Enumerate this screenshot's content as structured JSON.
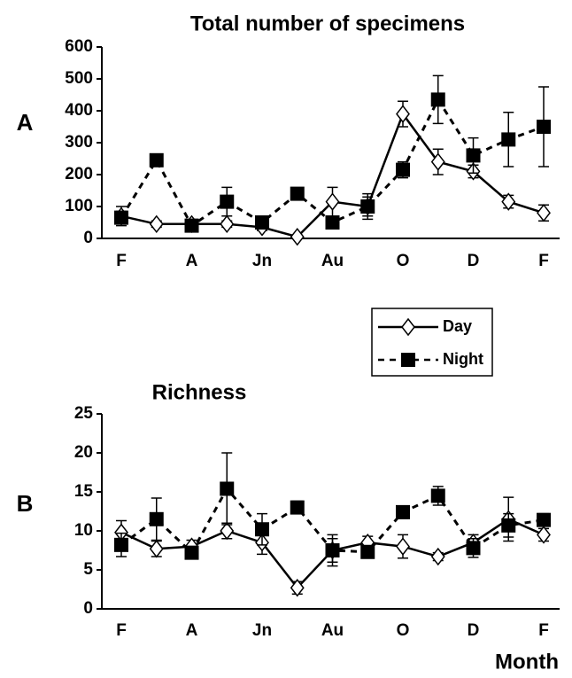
{
  "chart_data": [
    {
      "type": "line",
      "label": "A",
      "title": "Total number of specimens",
      "categories": [
        "F",
        null,
        "A",
        null,
        "Jn",
        null,
        "Au",
        null,
        "O",
        null,
        "D",
        null,
        "F"
      ],
      "ylim": [
        0,
        600
      ],
      "yticks": [
        0,
        100,
        200,
        300,
        400,
        500,
        600
      ],
      "series": [
        {
          "color": "#000000",
          "marker": "diamond",
          "dashed": false,
          "values": [
            70,
            45,
            45,
            45,
            35,
            5,
            115,
            100,
            390,
            240,
            210,
            115,
            80
          ],
          "errors": [
            30,
            10,
            10,
            10,
            10,
            5,
            45,
            40,
            40,
            40,
            20,
            20,
            25
          ]
        },
        {
          "color": "#000000",
          "marker": "square",
          "dashed": true,
          "values": [
            65,
            245,
            40,
            115,
            50,
            140,
            50,
            100,
            215,
            435,
            260,
            310,
            350
          ],
          "errors": [
            20,
            10,
            10,
            45,
            10,
            10,
            10,
            30,
            25,
            75,
            55,
            85,
            125
          ]
        }
      ]
    },
    {
      "type": "line",
      "label": "B",
      "title": "Richness",
      "x_label": "Month",
      "categories": [
        "F",
        null,
        "A",
        null,
        "Jn",
        null,
        "Au",
        null,
        "O",
        null,
        "D",
        null,
        "F"
      ],
      "ylim": [
        0,
        25
      ],
      "yticks": [
        0,
        5,
        10,
        15,
        20,
        25
      ],
      "series": [
        {
          "name": "Day",
          "color": "#000000",
          "marker": "diamond",
          "dashed": false,
          "values": [
            9.8,
            7.7,
            8,
            10,
            8.5,
            2.7,
            7.5,
            8.5,
            8,
            6.7,
            8.5,
            11.5,
            9.5
          ],
          "errors": [
            1.5,
            1,
            0.8,
            1,
            1.5,
            0.8,
            2,
            0.8,
            1.5,
            0.5,
            1,
            2.8,
            0.8
          ]
        },
        {
          "name": "Night",
          "color": "#000000",
          "marker": "square",
          "dashed": true,
          "values": [
            8.2,
            11.5,
            7.2,
            15.4,
            10.2,
            13,
            7.5,
            7.3,
            12.4,
            14.5,
            7.8,
            10.7,
            11.4
          ],
          "errors": [
            1.5,
            2.7,
            0.5,
            4.6,
            2,
            0.8,
            1.5,
            0.5,
            0.8,
            1.2,
            1.2,
            1.5,
            0.8
          ]
        }
      ]
    }
  ]
}
